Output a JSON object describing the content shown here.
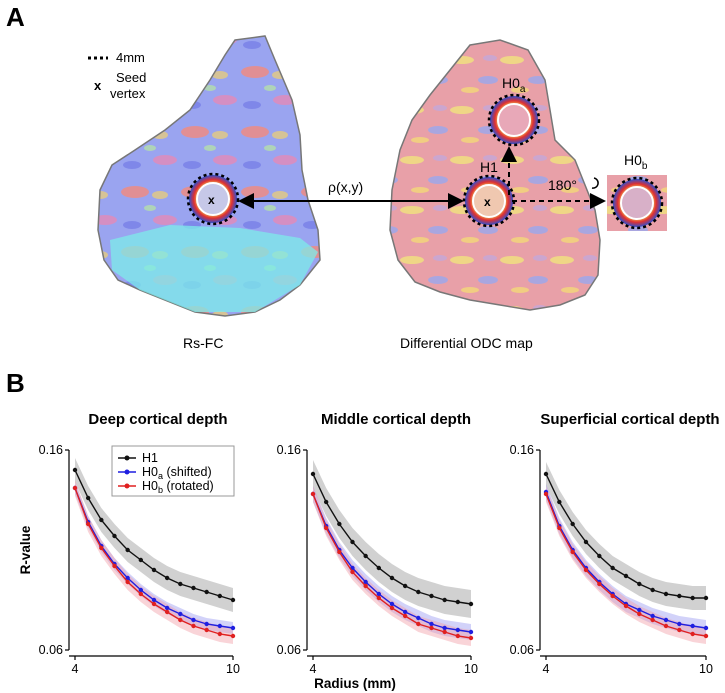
{
  "panel_a": {
    "letter": "A",
    "legend_dotted": "4mm",
    "legend_seed_line1": "Seed",
    "legend_seed_line2": "vertex",
    "seed_marker": "x",
    "left_map_label": "Rs-FC",
    "right_map_label": "Differential ODC map",
    "rho_label": "ρ(x,y)",
    "h1_label": "H1",
    "h0a_label": "H0",
    "h0a_sub": "a",
    "h0b_label": "H0",
    "h0b_sub": "b",
    "rotation_label": "180°"
  },
  "panel_b": {
    "letter": "B",
    "ylabel": "R-value",
    "xlabel": "Radius (mm)",
    "legend": [
      {
        "label": "H1",
        "sub": "",
        "suffix": "",
        "color": "#111111"
      },
      {
        "label": "H0",
        "sub": "a",
        "suffix": " (shifted)",
        "color": "#1f1fe0"
      },
      {
        "label": "H0",
        "sub": "b",
        "suffix": " (rotated)",
        "color": "#e02020"
      }
    ]
  },
  "chart_data": [
    {
      "type": "line",
      "title": "Deep cortical depth",
      "xlabel": "Radius (mm)",
      "ylabel": "R-value",
      "xlim": [
        4,
        10
      ],
      "ylim": [
        0.06,
        0.16
      ],
      "xticks": [
        "4",
        "10"
      ],
      "yticks": [
        "0.06",
        "0.16"
      ],
      "x": [
        4,
        4.5,
        5,
        5.5,
        6,
        6.5,
        7,
        7.5,
        8,
        8.5,
        9,
        9.5,
        10
      ],
      "series": [
        {
          "name": "H1",
          "color": "#111111",
          "values": [
            0.15,
            0.136,
            0.125,
            0.117,
            0.11,
            0.105,
            0.1,
            0.096,
            0.093,
            0.091,
            0.089,
            0.087,
            0.085
          ],
          "band": 0.006
        },
        {
          "name": "H0a (shifted)",
          "color": "#1f1fe0",
          "values": [
            0.141,
            0.124,
            0.112,
            0.103,
            0.096,
            0.09,
            0.085,
            0.081,
            0.078,
            0.075,
            0.073,
            0.072,
            0.071
          ],
          "band": 0.003
        },
        {
          "name": "H0b (rotated)",
          "color": "#e02020",
          "values": [
            0.141,
            0.123,
            0.111,
            0.102,
            0.094,
            0.088,
            0.083,
            0.079,
            0.075,
            0.072,
            0.07,
            0.068,
            0.067
          ],
          "band": 0.004
        }
      ]
    },
    {
      "type": "line",
      "title": "Middle cortical depth",
      "xlabel": "Radius (mm)",
      "ylabel": "",
      "xlim": [
        4,
        10
      ],
      "ylim": [
        0.06,
        0.16
      ],
      "xticks": [
        "4",
        "10"
      ],
      "yticks": [
        "0.06",
        "0.16"
      ],
      "x": [
        4,
        4.5,
        5,
        5.5,
        6,
        6.5,
        7,
        7.5,
        8,
        8.5,
        9,
        9.5,
        10
      ],
      "series": [
        {
          "name": "H1",
          "color": "#111111",
          "values": [
            0.148,
            0.134,
            0.123,
            0.114,
            0.107,
            0.101,
            0.096,
            0.092,
            0.089,
            0.087,
            0.085,
            0.084,
            0.083
          ],
          "band": 0.007
        },
        {
          "name": "H0a (shifted)",
          "color": "#1f1fe0",
          "values": [
            0.138,
            0.122,
            0.11,
            0.101,
            0.094,
            0.088,
            0.083,
            0.079,
            0.076,
            0.073,
            0.071,
            0.07,
            0.069
          ],
          "band": 0.004
        },
        {
          "name": "H0b (rotated)",
          "color": "#e02020",
          "values": [
            0.138,
            0.121,
            0.109,
            0.099,
            0.092,
            0.086,
            0.081,
            0.077,
            0.073,
            0.071,
            0.069,
            0.067,
            0.066
          ],
          "band": 0.004
        }
      ]
    },
    {
      "type": "line",
      "title": "Superficial cortical depth",
      "xlabel": "Radius (mm)",
      "ylabel": "",
      "xlim": [
        4,
        10
      ],
      "ylim": [
        0.06,
        0.16
      ],
      "xticks": [
        "4",
        "10"
      ],
      "yticks": [
        "0.06",
        "0.16"
      ],
      "x": [
        4,
        4.5,
        5,
        5.5,
        6,
        6.5,
        7,
        7.5,
        8,
        8.5,
        9,
        9.5,
        10
      ],
      "series": [
        {
          "name": "H1",
          "color": "#111111",
          "values": [
            0.148,
            0.134,
            0.123,
            0.114,
            0.107,
            0.101,
            0.097,
            0.093,
            0.09,
            0.088,
            0.087,
            0.086,
            0.086
          ],
          "band": 0.006
        },
        {
          "name": "H0a (shifted)",
          "color": "#1f1fe0",
          "values": [
            0.139,
            0.122,
            0.11,
            0.101,
            0.094,
            0.088,
            0.083,
            0.08,
            0.077,
            0.075,
            0.073,
            0.072,
            0.071
          ],
          "band": 0.004
        },
        {
          "name": "H0b (rotated)",
          "color": "#e02020",
          "values": [
            0.138,
            0.121,
            0.109,
            0.1,
            0.093,
            0.087,
            0.082,
            0.078,
            0.075,
            0.072,
            0.07,
            0.068,
            0.067
          ],
          "band": 0.004
        }
      ]
    }
  ]
}
